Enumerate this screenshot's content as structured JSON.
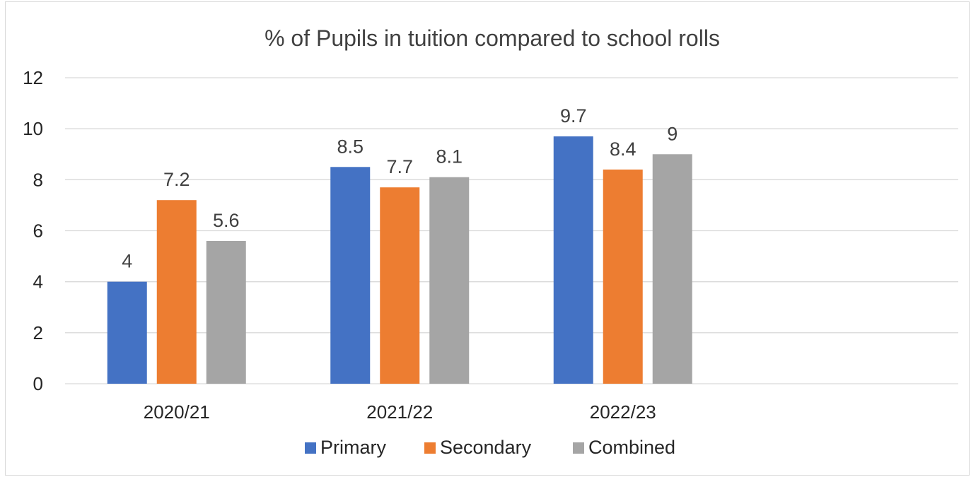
{
  "chart_data": {
    "type": "bar",
    "title": "% of Pupils in tuition compared to school rolls",
    "categories": [
      "2020/21",
      "2021/22",
      "2022/23"
    ],
    "series": [
      {
        "name": "Primary",
        "color": "#4472C4",
        "values": [
          4,
          8.5,
          9.7
        ],
        "labels": [
          "4",
          "8.5",
          "9.7"
        ]
      },
      {
        "name": "Secondary",
        "color": "#ED7D31",
        "values": [
          7.2,
          7.7,
          8.4
        ],
        "labels": [
          "7.2",
          "7.7",
          "8.4"
        ]
      },
      {
        "name": "Combined",
        "color": "#A5A5A5",
        "values": [
          5.6,
          8.1,
          9
        ],
        "labels": [
          "5.6",
          "8.1",
          "9"
        ]
      }
    ],
    "ylim": [
      0,
      12
    ],
    "yticks": [
      "0",
      "2",
      "4",
      "6",
      "8",
      "10",
      "12"
    ],
    "xlabel": "",
    "ylabel": "",
    "grid": true,
    "legend_position": "bottom"
  }
}
